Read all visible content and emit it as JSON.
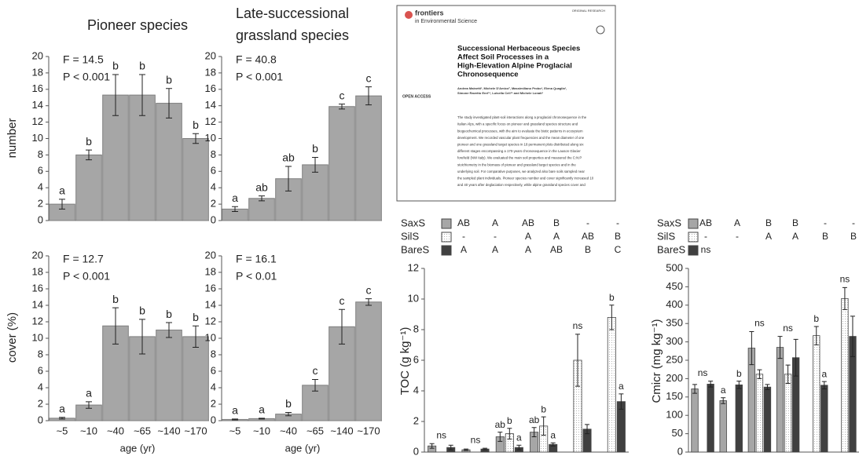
{
  "chart_data": [
    {
      "type": "bar",
      "title": [
        "Pioneer species"
      ],
      "ylabel": "number",
      "categories": [
        null,
        null,
        null,
        null,
        null,
        null
      ],
      "values": [
        2,
        8,
        15.3,
        15.3,
        14.3,
        10
      ],
      "errors": [
        0.6,
        0.6,
        2.5,
        2.5,
        1.8,
        0.6
      ],
      "letters": [
        "a",
        "b",
        "b",
        "b",
        "b",
        "b"
      ],
      "stats": [
        "F = 14.5",
        "P < 0.001"
      ],
      "color": "#a6a6a6",
      "ylim": [
        0,
        20
      ],
      "yticks": [
        0,
        2,
        4,
        6,
        8,
        10,
        12,
        14,
        16,
        18,
        20
      ]
    },
    {
      "type": "bar",
      "title": [
        "Late-successional",
        "grassland species"
      ],
      "categories": [
        null,
        null,
        null,
        null,
        null,
        null
      ],
      "values": [
        1.4,
        2.7,
        5.1,
        6.8,
        13.9,
        15.2
      ],
      "errors": [
        0.3,
        0.3,
        1.5,
        0.9,
        0.3,
        1.1
      ],
      "letters": [
        "a",
        "ab",
        "ab",
        "b",
        "c",
        "c"
      ],
      "stats": [
        "F = 40.8",
        "P < 0.001"
      ],
      "color": "#a6a6a6",
      "ylim": [
        0,
        20
      ],
      "yticks": [
        0,
        2,
        4,
        6,
        8,
        10,
        12,
        14,
        16,
        18,
        20
      ]
    },
    {
      "type": "bar",
      "ylabel": "cover (%)",
      "xlabel": "age (yr)",
      "categories": [
        "~5",
        "~10",
        "~40",
        "~65",
        "~140",
        "~170"
      ],
      "values": [
        0.3,
        1.9,
        11.5,
        10.2,
        11,
        10.2
      ],
      "errors": [
        0.1,
        0.4,
        2.2,
        2.1,
        0.9,
        1.3
      ],
      "letters": [
        "a",
        "a",
        "b",
        "b",
        "b",
        "b"
      ],
      "stats": [
        "F = 12.7",
        "P < 0.001"
      ],
      "color": "#a6a6a6",
      "ylim": [
        0,
        20
      ],
      "yticks": [
        0,
        2,
        4,
        6,
        8,
        10,
        12,
        14,
        16,
        18,
        20
      ]
    },
    {
      "type": "bar",
      "xlabel": "age (yr)",
      "categories": [
        "~5",
        "~10",
        "~40",
        "~65",
        "~140",
        "~170"
      ],
      "values": [
        0.15,
        0.25,
        0.8,
        4.3,
        11.4,
        14.4
      ],
      "errors": [
        0.05,
        0.05,
        0.2,
        0.7,
        2.1,
        0.4
      ],
      "letters": [
        "a",
        "a",
        "b",
        "c",
        "c",
        "c"
      ],
      "stats": [
        "F = 16.1",
        "P < 0.01"
      ],
      "color": "#a6a6a6",
      "ylim": [
        0,
        20
      ],
      "yticks": [
        0,
        2,
        4,
        6,
        8,
        10,
        12,
        14,
        16,
        18,
        20
      ]
    },
    {
      "type": "bar",
      "ylabel": "TOC (g kg⁻¹)",
      "categories": [
        null,
        null,
        null,
        null,
        null,
        null
      ],
      "group_labels": [
        "ns",
        "ns",
        null,
        null,
        "ns",
        null
      ],
      "ylim": [
        0,
        12
      ],
      "yticks": [
        0,
        2,
        4,
        6,
        8,
        10,
        12
      ],
      "series": [
        {
          "name": "SaxS",
          "color": "#a6a6a6",
          "values": [
            0.4,
            0.15,
            1.0,
            1.3,
            null,
            null
          ],
          "errors": [
            0.15,
            0.05,
            0.3,
            0.3,
            null,
            null
          ],
          "letters": [
            null,
            null,
            "ab",
            "ab",
            null,
            null
          ],
          "tests": [
            "AB",
            "A",
            "AB",
            "B",
            "-",
            "-"
          ]
        },
        {
          "name": "SilS",
          "color": "#ffffff",
          "pattern": "dots",
          "values": [
            null,
            null,
            1.2,
            1.7,
            6.0,
            8.8
          ],
          "errors": [
            null,
            null,
            0.35,
            0.6,
            1.7,
            0.8
          ],
          "letters": [
            null,
            null,
            "b",
            "b",
            null,
            "b"
          ],
          "tests": [
            "-",
            "-",
            "A",
            "A",
            "AB",
            "B"
          ]
        },
        {
          "name": "BareS",
          "color": "#404040",
          "values": [
            0.3,
            0.2,
            0.3,
            0.5,
            1.5,
            3.3
          ],
          "errors": [
            0.15,
            0.05,
            0.15,
            0.1,
            0.3,
            0.5
          ],
          "letters": [
            null,
            null,
            "a",
            "a",
            null,
            "a"
          ],
          "tests": [
            "A",
            "A",
            "A",
            "AB",
            "B",
            "C"
          ]
        }
      ]
    },
    {
      "type": "bar",
      "ylabel": "Cmicr (mg kg⁻¹)",
      "categories": [
        null,
        null,
        null,
        null,
        null,
        null
      ],
      "group_labels": [
        "ns",
        null,
        "ns",
        "ns",
        null,
        "ns"
      ],
      "ylim": [
        0,
        500
      ],
      "yticks": [
        0,
        50,
        100,
        150,
        200,
        250,
        300,
        350,
        400,
        450,
        500
      ],
      "series": [
        {
          "name": "SaxS",
          "color": "#a6a6a6",
          "values": [
            172,
            140,
            283,
            285,
            null,
            null
          ],
          "errors": [
            12,
            8,
            45,
            30,
            null,
            null
          ],
          "letters": [
            null,
            "a",
            null,
            null,
            null,
            null
          ],
          "tests": [
            "AB",
            "A",
            "B",
            "B",
            "-",
            "-"
          ]
        },
        {
          "name": "SilS",
          "color": "#ffffff",
          "pattern": "dots",
          "values": [
            null,
            null,
            212,
            212,
            317,
            418
          ],
          "errors": [
            null,
            null,
            12,
            25,
            25,
            30
          ],
          "letters": [
            null,
            null,
            null,
            null,
            "b",
            null
          ],
          "tests": [
            "-",
            "-",
            "A",
            "A",
            "B",
            "B"
          ]
        },
        {
          "name": "BareS",
          "color": "#404040",
          "values": [
            185,
            183,
            177,
            257,
            182,
            315
          ],
          "errors": [
            8,
            10,
            7,
            50,
            10,
            55
          ],
          "letters": [
            null,
            "b",
            null,
            null,
            "a",
            null
          ],
          "tests": [
            "ns"
          ]
        }
      ]
    }
  ],
  "paper": {
    "journal": [
      "frontiers",
      "in Environmental Science"
    ],
    "article_type": "ORIGINAL RESEARCH",
    "title": [
      "Successional Herbaceous Species",
      "Affect Soil Processes in a",
      "High-Elevation Alpine Proglacial",
      "Chronosequence"
    ],
    "authors": [
      "Andrea Mainetti¹, Michele D'Amico², Massimiliano Probo³, Elena Quaglia¹,",
      "Simone Ravetto Enri¹*, Luisella Celi¹* and Michele Lonati¹"
    ],
    "open_access": "OPEN ACCESS",
    "abstract": [
      "The study investigated plant-soil interactions along a proglacial chronosequence in the",
      "Italian Alps, with a specific focus on pioneer and grassland species structure and",
      "biogeochemical processes, with the aim to evaluate the biotic patterns in ecosystem",
      "development. We recorded vascular plant frequencies and the mean diameter of one",
      "pioneer and one grassland target species in 18 permanent plots distributed along six",
      "different stages encompassing a 170-years chronosequence in the Lauson Glacier",
      "forefield (NW Italy). We evaluated the main soil properties and measured the C:N:P",
      "stoichiometry in the biomass of pioneer and grassland target species and in the",
      "underlying soil. For comparative purposes, we analyzed also bare soils sampled near",
      "the sampled plant individuals. Pioneer species number and cover significantly increased 10",
      "and 40 years after deglaciation respectively, while alpine grassland species cover and"
    ]
  }
}
